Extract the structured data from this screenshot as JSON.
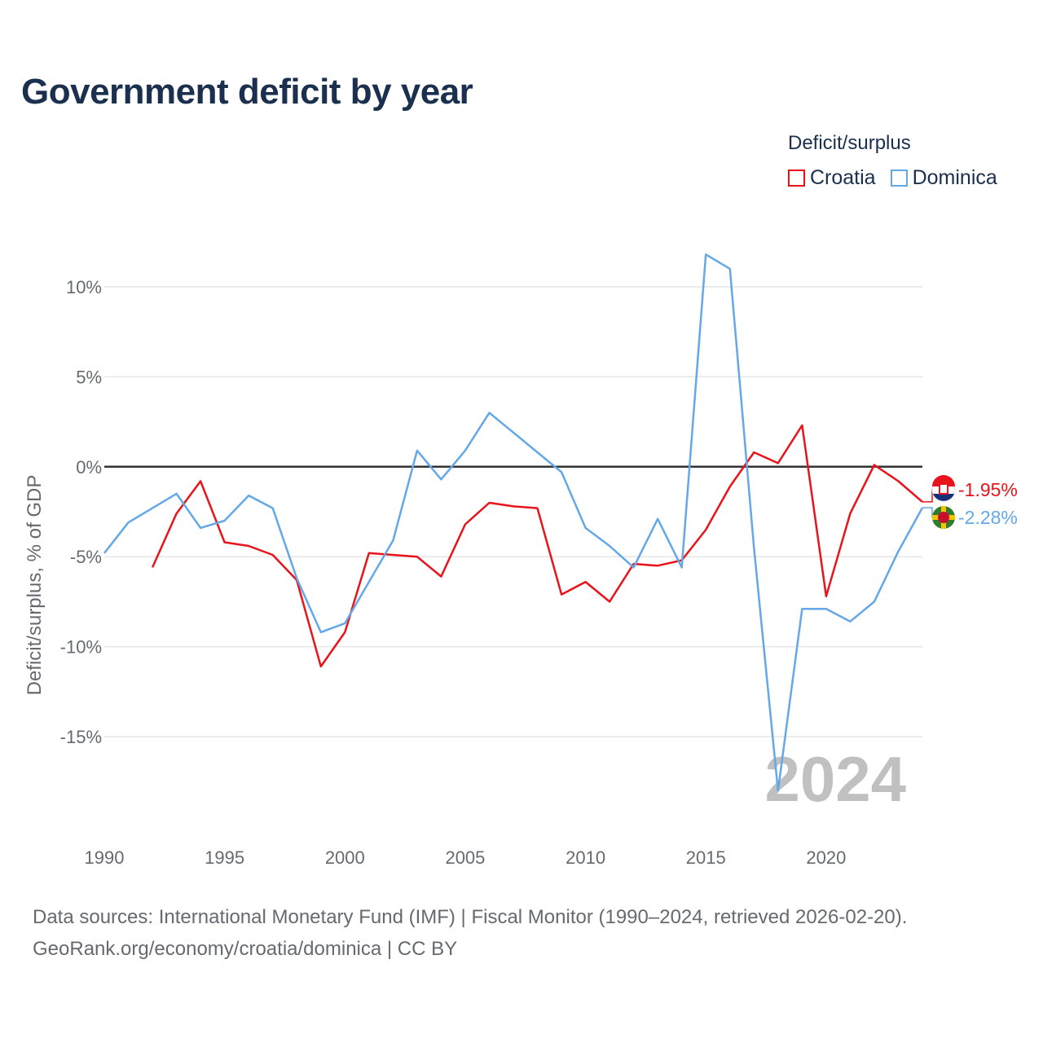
{
  "title": "Government deficit by year",
  "legend": {
    "title": "Deficit/surplus",
    "items": [
      {
        "name": "Croatia",
        "color": "#e8131b"
      },
      {
        "name": "Dominica",
        "color": "#64a8e8"
      }
    ]
  },
  "footer": {
    "line1": "Data sources: International Monetary Fund (IMF) | Fiscal Monitor (1990–2024, retrieved 2026-02-20).",
    "line2": "GeoRank.org/economy/croatia/dominica | CC BY"
  },
  "chart_data": {
    "type": "line",
    "title": "Government deficit by year",
    "xlabel": "",
    "ylabel": "Deficit/surplus, % of GDP",
    "xlim": [
      1990,
      2024
    ],
    "ylim": [
      -20,
      13
    ],
    "x_ticks": [
      1990,
      1995,
      2000,
      2005,
      2010,
      2015,
      2020
    ],
    "y_ticks": [
      10,
      5,
      0,
      -5,
      -10,
      -15
    ],
    "y_tick_labels": [
      "10%",
      "5%",
      "0%",
      "-5%",
      "-10%",
      "-15%"
    ],
    "zero_line": true,
    "year_watermark": "2024",
    "series": [
      {
        "name": "Croatia",
        "color": "#e8131b",
        "end_label": "-1.95%",
        "x": [
          1992,
          1993,
          1994,
          1995,
          1996,
          1997,
          1998,
          1999,
          2000,
          2001,
          2002,
          2003,
          2004,
          2005,
          2006,
          2007,
          2008,
          2009,
          2010,
          2011,
          2012,
          2013,
          2014,
          2015,
          2016,
          2017,
          2018,
          2019,
          2020,
          2021,
          2022,
          2023,
          2024
        ],
        "values": [
          -5.6,
          -2.6,
          -0.8,
          -4.2,
          -4.4,
          -4.9,
          -6.3,
          -11.1,
          -9.2,
          -4.8,
          -4.9,
          -5.0,
          -6.1,
          -3.2,
          -2.0,
          -2.2,
          -2.3,
          -7.1,
          -6.4,
          -7.5,
          -5.4,
          -5.5,
          -5.2,
          -3.5,
          -1.1,
          0.8,
          0.2,
          2.3,
          -7.2,
          -2.6,
          0.1,
          -0.8,
          -1.95
        ]
      },
      {
        "name": "Dominica",
        "color": "#64a8e8",
        "end_label": "-2.28%",
        "x": [
          1990,
          1991,
          1992,
          1993,
          1994,
          1995,
          1996,
          1997,
          1998,
          1999,
          2000,
          2001,
          2002,
          2003,
          2004,
          2005,
          2006,
          2007,
          2008,
          2009,
          2010,
          2011,
          2012,
          2013,
          2014,
          2015,
          2016,
          2017,
          2018,
          2019,
          2020,
          2021,
          2022,
          2023,
          2024
        ],
        "values": [
          -4.8,
          -3.1,
          -2.3,
          -1.5,
          -3.4,
          -3.0,
          -1.6,
          -2.3,
          -6.2,
          -9.2,
          -8.7,
          -6.4,
          -4.1,
          0.9,
          -0.7,
          0.9,
          3.0,
          1.9,
          0.8,
          -0.3,
          -3.4,
          -4.4,
          -5.6,
          -2.9,
          -5.6,
          11.8,
          11.0,
          -4.5,
          -18.0,
          -7.9,
          -7.9,
          -8.6,
          -7.5,
          -4.7,
          -2.28
        ]
      }
    ]
  }
}
